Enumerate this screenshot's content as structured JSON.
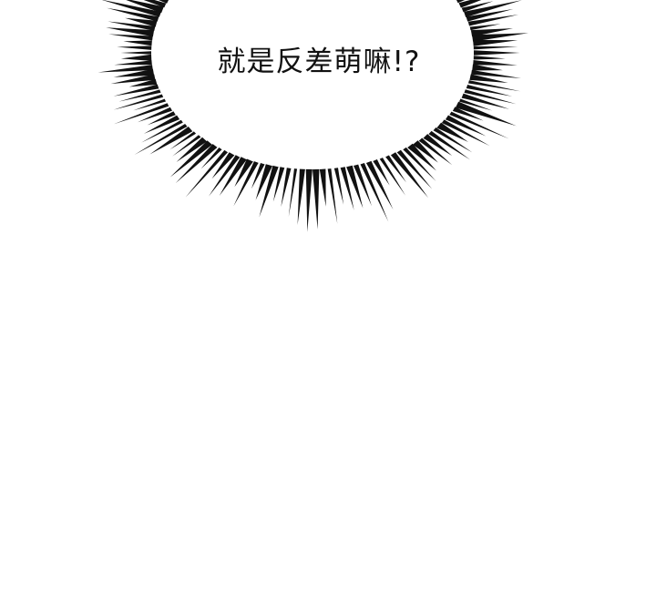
{
  "bubble": {
    "text": "就是反差萌嘛!?"
  },
  "colors": {
    "background": "#ffffff",
    "ink": "#111111"
  },
  "icons": {
    "burst": "speech-burst-rays"
  }
}
